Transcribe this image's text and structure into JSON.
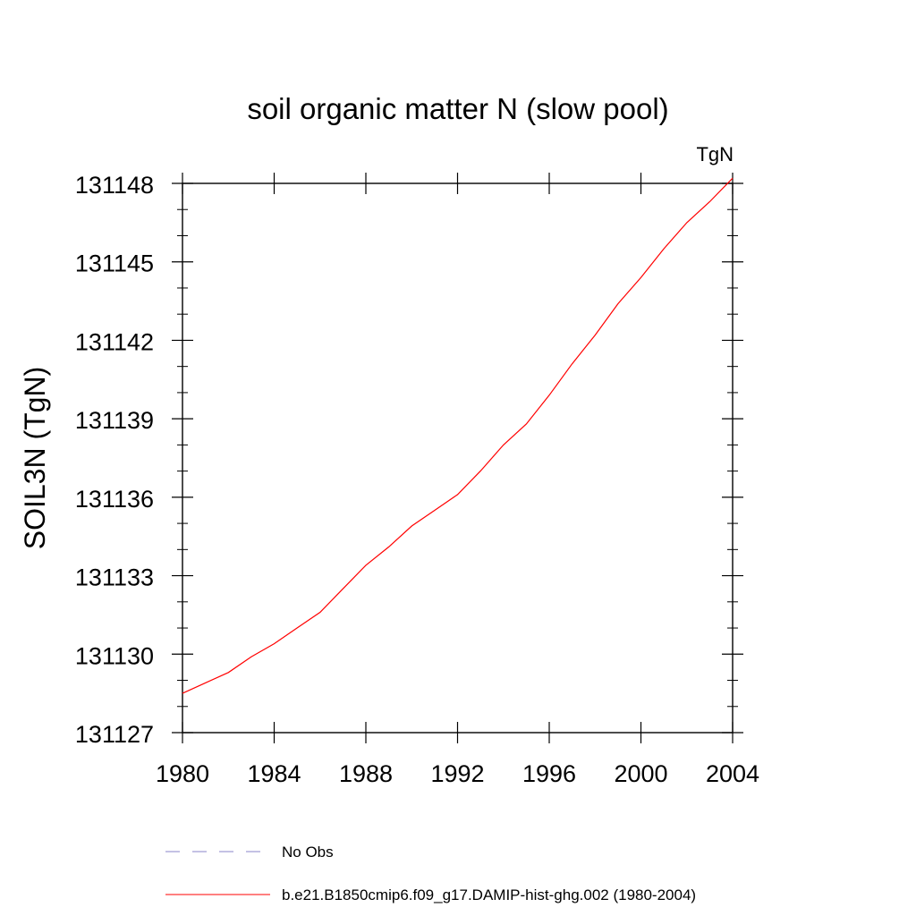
{
  "chart_data": {
    "type": "line",
    "title": "soil organic matter N (slow pool)",
    "units_label": "TgN",
    "ylabel": "SOIL3N  (TgN)",
    "xlabel": "",
    "xlim": [
      1980,
      2004
    ],
    "ylim": [
      131127,
      131148
    ],
    "x_ticks": [
      1980,
      1984,
      1988,
      1992,
      1996,
      2000,
      2004
    ],
    "y_ticks": [
      131127,
      131130,
      131133,
      131136,
      131139,
      131142,
      131145,
      131148
    ],
    "x_tick_labels": [
      "1980",
      "1984",
      "1988",
      "1992",
      "1996",
      "2000",
      "2004"
    ],
    "y_tick_labels": [
      "131127",
      "131130",
      "131133",
      "131136",
      "131139",
      "131142",
      "131145",
      "131148"
    ],
    "grid": false,
    "legend_placement": "bottom",
    "series": [
      {
        "name": "b.e21.B1850cmip6.f09_g17.DAMIP-hist-ghg.002 (1980-2004)",
        "color": "#ff0000",
        "style": "solid",
        "x": [
          1980,
          1981,
          1982,
          1983,
          1984,
          1985,
          1986,
          1987,
          1988,
          1989,
          1990,
          1991,
          1992,
          1993,
          1994,
          1995,
          1996,
          1997,
          1998,
          1999,
          2000,
          2001,
          2002,
          2003,
          2004
        ],
        "values": [
          131128.5,
          131128.9,
          131129.3,
          131129.9,
          131130.4,
          131131.0,
          131131.6,
          131132.5,
          131133.4,
          131134.1,
          131134.9,
          131135.5,
          131136.1,
          131137.0,
          131138.0,
          131138.8,
          131139.9,
          131141.1,
          131142.2,
          131143.4,
          131144.4,
          131145.5,
          131146.5,
          131147.3,
          131148.2
        ]
      }
    ],
    "legend": [
      {
        "label": "No Obs",
        "color": "#8a85c8",
        "style": "dashed"
      },
      {
        "label": "b.e21.B1850cmip6.f09_g17.DAMIP-hist-ghg.002 (1980-2004)",
        "color": "#ff0000",
        "style": "solid"
      }
    ]
  }
}
